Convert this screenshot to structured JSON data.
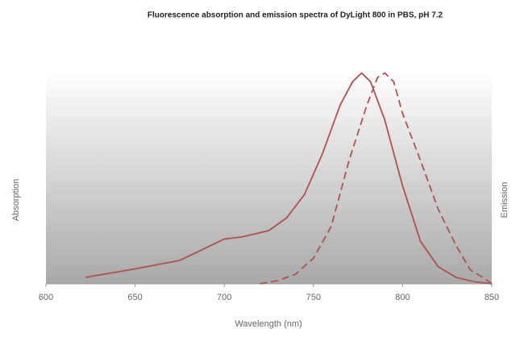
{
  "chart_data": {
    "type": "line",
    "title": "Fluorescence absorption and emission spectra of DyLight 800 in PBS, pH 7.2",
    "xlabel": "Wavelength (nm)",
    "ylabel": "Absorption",
    "y2label": "Emission",
    "xlim": [
      600,
      850
    ],
    "xticks": [
      600,
      650,
      700,
      750,
      800,
      850
    ],
    "ylim": [
      0,
      1
    ],
    "series": [
      {
        "name": "Absorption",
        "color": "#b0504e",
        "dash": false,
        "x": [
          622,
          650,
          675,
          690,
          700,
          710,
          725,
          735,
          745,
          755,
          765,
          772,
          777,
          782,
          790,
          800,
          810,
          820,
          830,
          840,
          850
        ],
        "values": [
          0.03,
          0.07,
          0.11,
          0.17,
          0.21,
          0.22,
          0.25,
          0.31,
          0.42,
          0.61,
          0.84,
          0.95,
          0.99,
          0.95,
          0.77,
          0.46,
          0.2,
          0.08,
          0.03,
          0.01,
          0
        ]
      },
      {
        "name": "Emission",
        "color": "#b0504e",
        "dash": true,
        "x": [
          720,
          730,
          740,
          750,
          760,
          770,
          780,
          786,
          790,
          795,
          800,
          810,
          820,
          830,
          838,
          845,
          850
        ],
        "values": [
          0,
          0.015,
          0.045,
          0.12,
          0.27,
          0.58,
          0.84,
          0.97,
          0.99,
          0.95,
          0.8,
          0.58,
          0.35,
          0.18,
          0.065,
          0.03,
          0
        ]
      }
    ]
  }
}
